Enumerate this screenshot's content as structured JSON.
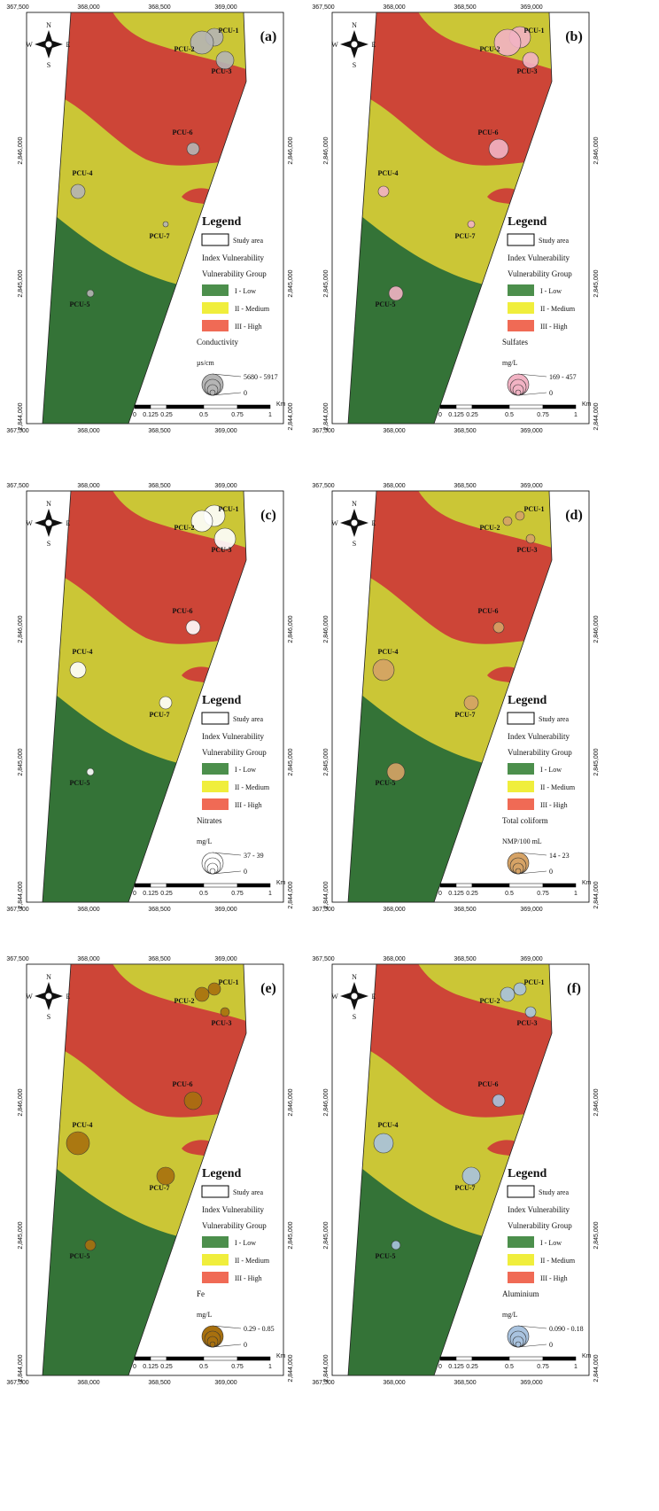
{
  "map_labels": {
    "eastings": [
      "367,500",
      "368,000",
      "368,500",
      "369,000"
    ],
    "northings": [
      "2,846,000",
      "2,845,000",
      "2,844,000"
    ],
    "compass": {
      "n": "N",
      "s": "S",
      "e": "E",
      "w": "W"
    },
    "sites": [
      "PCU-1",
      "PCU-2",
      "PCU-3",
      "PCU-6",
      "PCU-4",
      "PCU-7",
      "PCU-5"
    ],
    "legend": {
      "title": "Legend",
      "study_area": "Study area",
      "index": "Index Vulnerability",
      "group": "Vulnerability Group",
      "classes": [
        "I - Low",
        "II - Medium",
        "III - High"
      ],
      "zero": "0"
    },
    "scale": {
      "ticks": [
        "0",
        "0.125",
        "0.25",
        "0.5",
        "0.75",
        "1"
      ],
      "unit": "Km"
    }
  },
  "panels": [
    {
      "label": "(a)",
      "parameter": "Conductivity",
      "unit": "µs/cm",
      "range": "5680 - 5917"
    },
    {
      "label": "(b)",
      "parameter": "Sulfates",
      "unit": "mg/L",
      "range": "169 - 457"
    },
    {
      "label": "(c)",
      "parameter": "Nitrates",
      "unit": "mg/L",
      "range": "37 - 39"
    },
    {
      "label": "(d)",
      "parameter": "Total coliform",
      "unit": "NMP/100 mL",
      "range": "14 - 23"
    },
    {
      "label": "(e)",
      "parameter": "Fe",
      "unit": "mg/L",
      "range": "0.29 - 0.85"
    },
    {
      "label": "(f)",
      "parameter": "Aluminium",
      "unit": "mg/L",
      "range": "0.090 - 0.18"
    }
  ]
}
